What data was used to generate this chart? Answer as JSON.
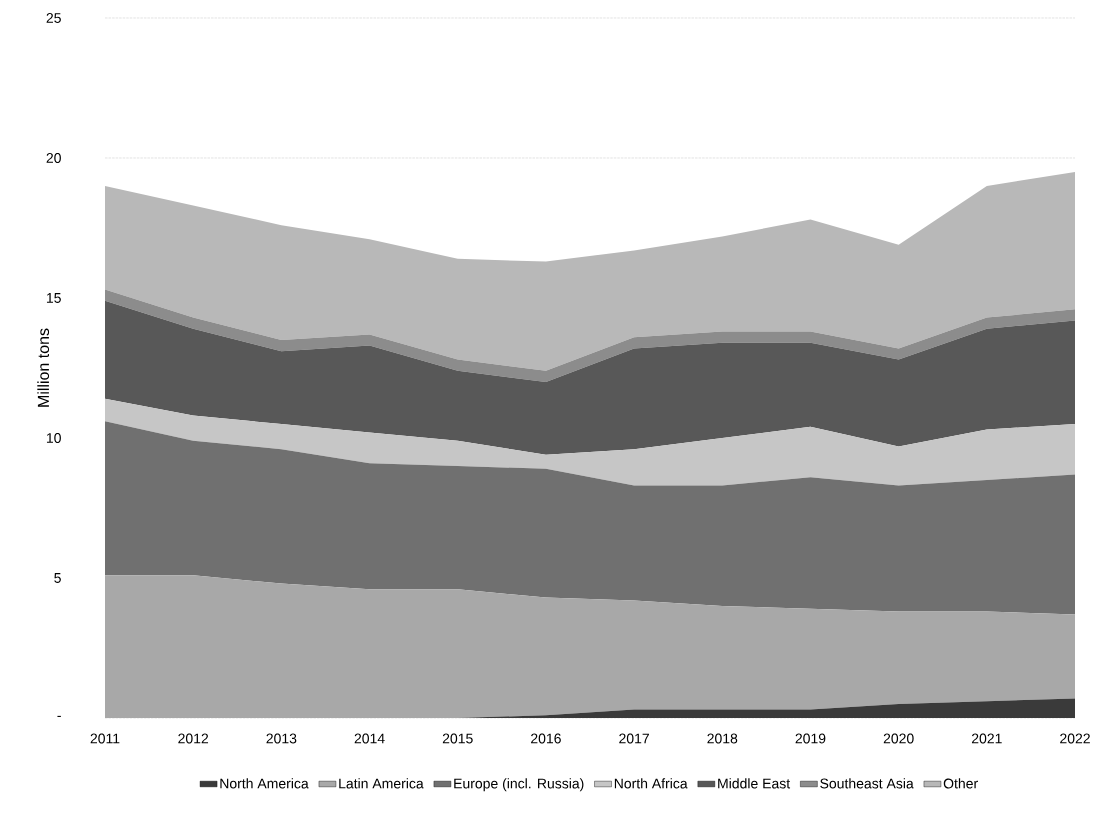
{
  "chart_data": {
    "type": "area",
    "stacked": true,
    "ylabel": "Million tons",
    "categories": [
      "2011",
      "2012",
      "2013",
      "2014",
      "2015",
      "2016",
      "2017",
      "2018",
      "2019",
      "2020",
      "2021",
      "2022"
    ],
    "ylim": [
      0,
      25
    ],
    "yticks": [
      {
        "value": 0,
        "label": "-"
      },
      5,
      10,
      15,
      20,
      25
    ],
    "grid": "y",
    "legend": "bottom",
    "series": [
      {
        "name": "North America",
        "color": "#3a3a3a",
        "values": [
          0,
          0,
          0,
          0,
          0,
          0.1,
          0.3,
          0.3,
          0.3,
          0.5,
          0.6,
          0.7
        ]
      },
      {
        "name": "Latin America",
        "color": "#a8a8a8",
        "values": [
          5.1,
          5.1,
          4.8,
          4.6,
          4.6,
          4.2,
          3.9,
          3.7,
          3.6,
          3.3,
          3.2,
          3.0
        ]
      },
      {
        "name": "Europe (incl. Russia)",
        "color": "#707070",
        "values": [
          5.5,
          4.8,
          4.8,
          4.5,
          4.4,
          4.6,
          4.1,
          4.3,
          4.7,
          4.5,
          4.7,
          5.0
        ]
      },
      {
        "name": "North Africa",
        "color": "#c6c6c6",
        "values": [
          0.8,
          0.9,
          0.9,
          1.1,
          0.9,
          0.5,
          1.3,
          1.7,
          1.8,
          1.4,
          1.8,
          1.8
        ]
      },
      {
        "name": "Middle East",
        "color": "#585858",
        "values": [
          3.5,
          3.1,
          2.6,
          3.1,
          2.5,
          2.6,
          3.6,
          3.4,
          3.0,
          3.1,
          3.6,
          3.7
        ]
      },
      {
        "name": "Southeast Asia",
        "color": "#8c8c8c",
        "values": [
          0.4,
          0.4,
          0.4,
          0.4,
          0.4,
          0.4,
          0.4,
          0.4,
          0.4,
          0.4,
          0.4,
          0.4
        ]
      },
      {
        "name": "Other",
        "color": "#b8b8b8",
        "values": [
          3.7,
          4.0,
          4.1,
          3.4,
          3.6,
          3.9,
          3.1,
          3.4,
          4.0,
          3.7,
          4.7,
          4.9
        ]
      }
    ]
  }
}
